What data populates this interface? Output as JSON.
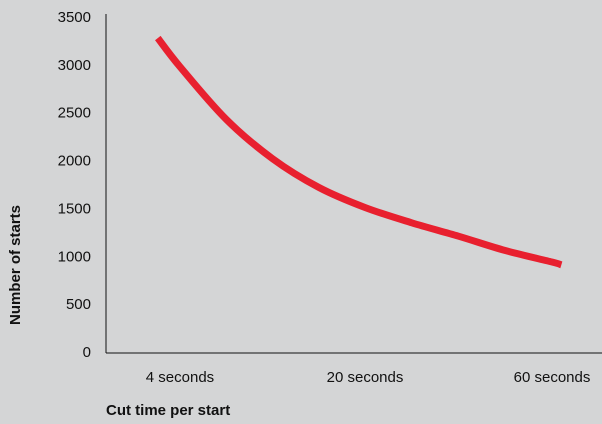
{
  "chart_data": {
    "type": "line",
    "title": "",
    "xlabel": "Cut time per start",
    "ylabel": "Number of starts",
    "ylim": [
      0,
      3500
    ],
    "yticks": [
      0,
      500,
      1000,
      1500,
      2000,
      2500,
      3000,
      3500
    ],
    "categories": [
      "4 seconds",
      "20 seconds",
      "60 seconds"
    ],
    "x_positions": [
      0,
      1,
      2
    ],
    "grid": false,
    "legend": "none",
    "series": [
      {
        "color": "#e8202f",
        "points": [
          {
            "x": -0.12,
            "y": 3280
          },
          {
            "x": 0.0,
            "y": 2980
          },
          {
            "x": 0.25,
            "y": 2430
          },
          {
            "x": 0.5,
            "y": 2020
          },
          {
            "x": 0.75,
            "y": 1720
          },
          {
            "x": 1.0,
            "y": 1510
          },
          {
            "x": 1.25,
            "y": 1350
          },
          {
            "x": 1.5,
            "y": 1210
          },
          {
            "x": 1.75,
            "y": 1060
          },
          {
            "x": 2.0,
            "y": 940
          },
          {
            "x": 2.05,
            "y": 910
          }
        ]
      }
    ]
  },
  "colors": {
    "background": "#d4d5d6",
    "axis": "#111111",
    "line": "#e8202f"
  }
}
